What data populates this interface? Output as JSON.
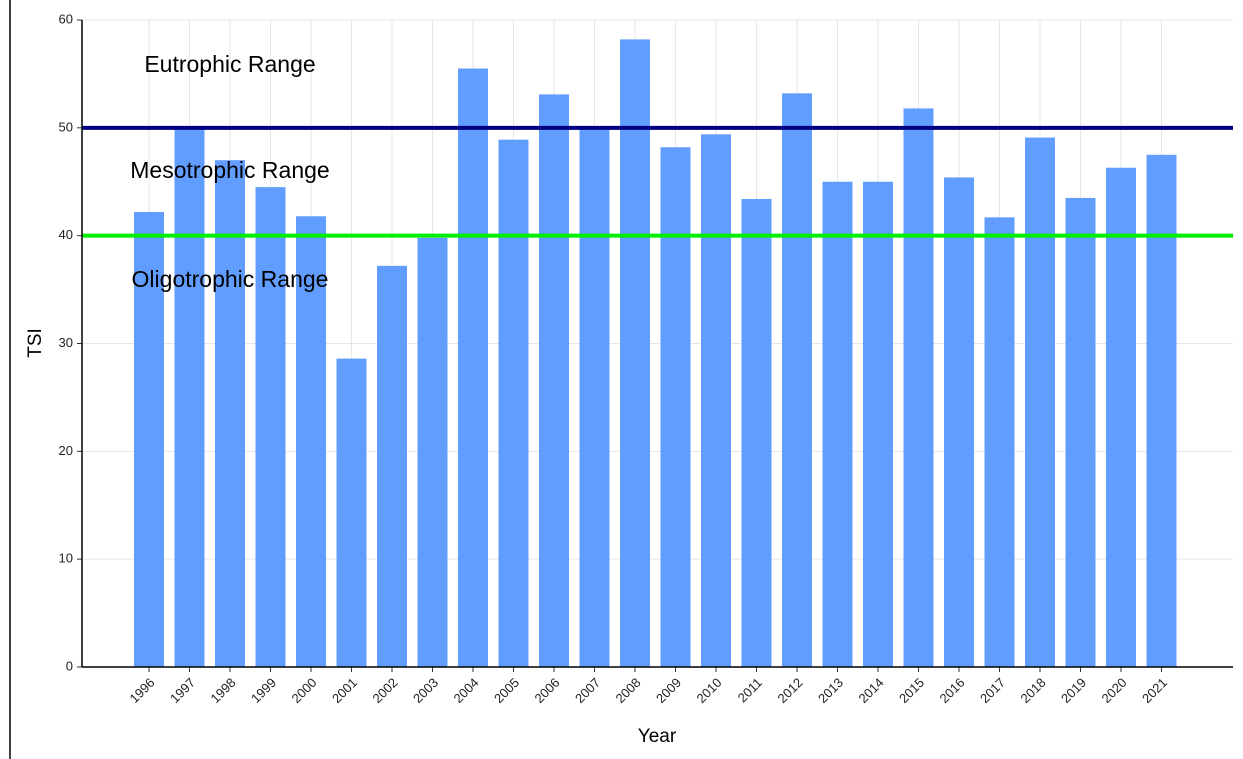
{
  "chart_data": {
    "type": "bar",
    "x_label": "Year",
    "y_label": "TSI",
    "categories": [
      "1996",
      "1997",
      "1998",
      "1999",
      "2000",
      "2001",
      "2002",
      "2003",
      "2004",
      "2005",
      "2006",
      "2007",
      "2008",
      "2009",
      "2010",
      "2011",
      "2012",
      "2013",
      "2014",
      "2015",
      "2016",
      "2017",
      "2018",
      "2019",
      "2020",
      "2021"
    ],
    "values": [
      42.2,
      50,
      47,
      44.5,
      41.8,
      28.6,
      37.2,
      39.8,
      55.5,
      48.9,
      53.1,
      49.9,
      58.2,
      48.2,
      49.4,
      43.4,
      53.2,
      45,
      45,
      51.8,
      45.4,
      41.7,
      49.1,
      43.5,
      46.3,
      47.5
    ],
    "color": "#619cff",
    "ylim": [
      0,
      60
    ],
    "yticks": [
      0,
      10,
      20,
      30,
      40,
      50,
      60
    ],
    "grid": true,
    "hlines": [
      {
        "value": 50,
        "color": "#000080"
      },
      {
        "value": 40,
        "color": "#00ee00"
      }
    ],
    "annotations": [
      "Eutrophic Range",
      "Mesotrophic Range",
      "Oligotrophic Range"
    ]
  }
}
